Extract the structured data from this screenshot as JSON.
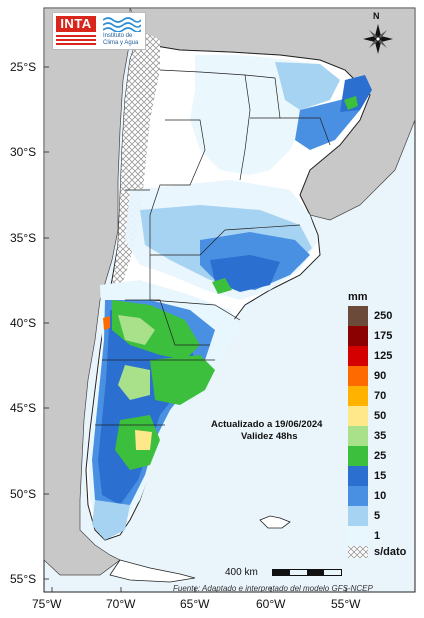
{
  "map": {
    "latitude_labels": [
      "25°S",
      "30°S",
      "35°S",
      "40°S",
      "45°S",
      "50°S",
      "55°S"
    ],
    "longitude_labels": [
      "75°W",
      "70°W",
      "65°W",
      "60°W",
      "55°W"
    ],
    "north_label": "N",
    "update_line1": "Actualizado a 19/06/2024",
    "update_line2": "Validez 48hs",
    "source": "Fuente: Adaptado e interpretado del modelo GFS-NCEP",
    "scale_label": "400 km"
  },
  "logos": {
    "inta": "INTA",
    "ica_line1": "Instituto de",
    "ica_line2": "Clima y Agua"
  },
  "legend": {
    "title": "mm",
    "items": [
      {
        "label": "250",
        "color": "#6b4a3a"
      },
      {
        "label": "175",
        "color": "#8b0000"
      },
      {
        "label": "125",
        "color": "#d40000"
      },
      {
        "label": "90",
        "color": "#ff6a00"
      },
      {
        "label": "70",
        "color": "#ffb300"
      },
      {
        "label": "50",
        "color": "#ffe88a"
      },
      {
        "label": "35",
        "color": "#a9e08a"
      },
      {
        "label": "25",
        "color": "#3cbf3c"
      },
      {
        "label": "15",
        "color": "#2b6fd1"
      },
      {
        "label": "10",
        "color": "#4a90e2"
      },
      {
        "label": "5",
        "color": "#a7d3f2"
      },
      {
        "label": "1",
        "color": "#e8f6fd"
      }
    ],
    "nodata_label": "s/dato"
  },
  "colors": {
    "ocean": "#eaf4fb",
    "neighbor_land": "#c8c8c8",
    "argentina_land": "#ffffff",
    "boundary": "#222222"
  }
}
